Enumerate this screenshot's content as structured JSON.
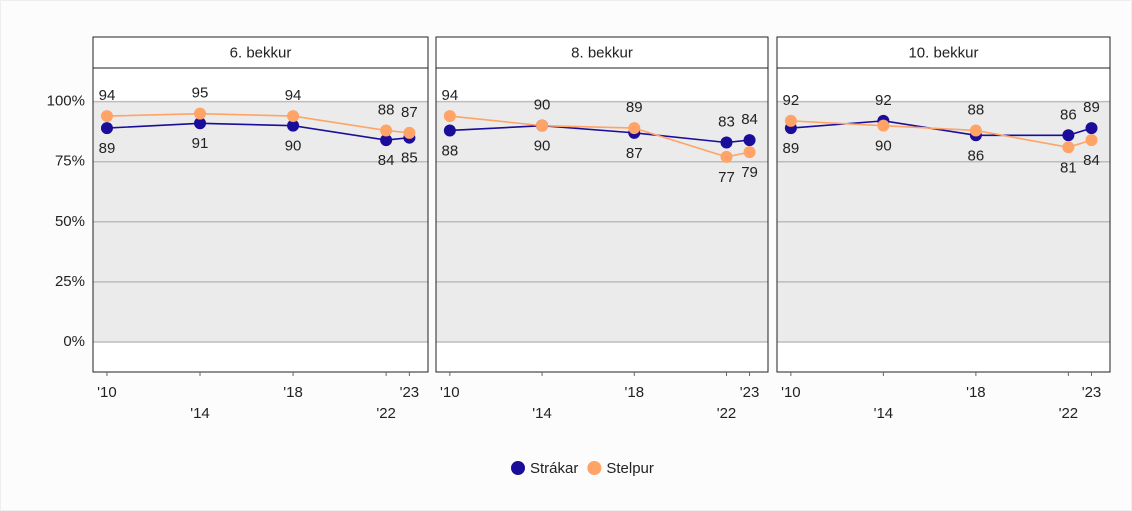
{
  "chart_data": [
    {
      "type": "line",
      "title": "6. bekkur",
      "x": [
        2010,
        2014,
        2018,
        2022,
        2023
      ],
      "series": [
        {
          "name": "Strákar",
          "color": "#1a0d99",
          "values": [
            89,
            91,
            90,
            84,
            85
          ]
        },
        {
          "name": "Stelpur",
          "color": "#ffa366",
          "values": [
            94,
            95,
            94,
            88,
            87
          ]
        }
      ],
      "xlim": [
        2009.4,
        2023.8
      ],
      "xticks": [
        {
          "value": 2010,
          "label": "'10"
        },
        {
          "value": 2014,
          "label": "'14"
        },
        {
          "value": 2018,
          "label": "'18"
        },
        {
          "value": 2022,
          "label": "'22"
        },
        {
          "value": 2023,
          "label": "'23"
        }
      ],
      "ylim": [
        -12.5,
        114
      ],
      "yticks": [
        {
          "value": 0,
          "label": "0%"
        },
        {
          "value": 25,
          "label": "25%"
        },
        {
          "value": 50,
          "label": "50%"
        },
        {
          "value": 75,
          "label": "75%"
        },
        {
          "value": 100,
          "label": "100%"
        }
      ],
      "grid": true
    },
    {
      "type": "line",
      "title": "8. bekkur",
      "x": [
        2010,
        2014,
        2018,
        2022,
        2023
      ],
      "series": [
        {
          "name": "Strákar",
          "color": "#1a0d99",
          "values": [
            88,
            90,
            87,
            83,
            84
          ]
        },
        {
          "name": "Stelpur",
          "color": "#ffa366",
          "values": [
            94,
            90,
            89,
            77,
            79
          ]
        }
      ],
      "xlim": [
        2009.4,
        2023.8
      ],
      "xticks": [
        {
          "value": 2010,
          "label": "'10"
        },
        {
          "value": 2014,
          "label": "'14"
        },
        {
          "value": 2018,
          "label": "'18"
        },
        {
          "value": 2022,
          "label": "'22"
        },
        {
          "value": 2023,
          "label": "'23"
        }
      ],
      "ylim": [
        -12.5,
        114
      ],
      "yticks": [
        {
          "value": 0,
          "label": "0%"
        },
        {
          "value": 25,
          "label": "25%"
        },
        {
          "value": 50,
          "label": "50%"
        },
        {
          "value": 75,
          "label": "75%"
        },
        {
          "value": 100,
          "label": "100%"
        }
      ],
      "grid": true
    },
    {
      "type": "line",
      "title": "10. bekkur",
      "x": [
        2010,
        2014,
        2018,
        2022,
        2023
      ],
      "series": [
        {
          "name": "Strákar",
          "color": "#1a0d99",
          "values": [
            89,
            92,
            86,
            86,
            89
          ]
        },
        {
          "name": "Stelpur",
          "color": "#ffa366",
          "values": [
            92,
            90,
            88,
            81,
            84
          ]
        }
      ],
      "xlim": [
        2009.4,
        2023.8
      ],
      "xticks": [
        {
          "value": 2010,
          "label": "'10"
        },
        {
          "value": 2014,
          "label": "'14"
        },
        {
          "value": 2018,
          "label": "'18"
        },
        {
          "value": 2022,
          "label": "'22"
        },
        {
          "value": 2023,
          "label": "'23"
        }
      ],
      "ylim": [
        -12.5,
        114
      ],
      "yticks": [
        {
          "value": 0,
          "label": "0%"
        },
        {
          "value": 25,
          "label": "25%"
        },
        {
          "value": 50,
          "label": "50%"
        },
        {
          "value": 75,
          "label": "75%"
        },
        {
          "value": 100,
          "label": "100%"
        }
      ],
      "grid": true
    }
  ]
}
